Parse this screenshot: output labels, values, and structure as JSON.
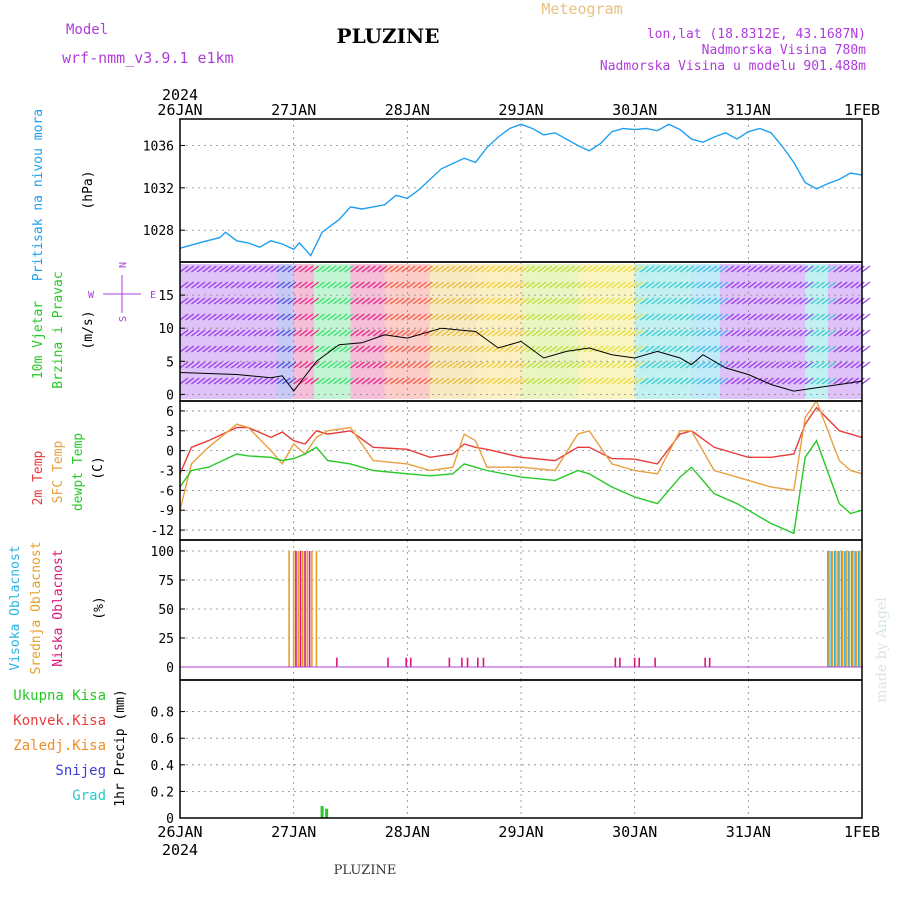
{
  "header": {
    "model_label": "Model",
    "model_name": "wrf-nmm_v3.9.1 e1km",
    "title": "PLUZINE",
    "meteogram_label": "Meteogram",
    "lonlat": "lon,lat (18.8312E, 43.1687N)",
    "altitude": "Nadmorska Visina 780m",
    "model_altitude": "Nadmorska Visina u modelu 901.488m",
    "footer_title": "PLUZINE",
    "credit": "made by Angel"
  },
  "time_axis": {
    "year_top": "2024",
    "year_bottom": "2024",
    "labels": [
      "26JAN",
      "27JAN",
      "28JAN",
      "29JAN",
      "30JAN",
      "31JAN",
      "1FEB"
    ]
  },
  "colors": {
    "pressure": "#1ea0f0",
    "temp2m": "#e83c3c",
    "sfc_temp": "#e8a040",
    "dewpoint": "#28c828",
    "high_cloud": "#28b4e6",
    "mid_cloud": "#e6a028",
    "low_cloud": "#dc1478",
    "precip_total": "#28c828",
    "precip_conv": "#e83c3c",
    "precip_frozen": "#f08c28",
    "precip_snow": "#3c3cdc",
    "precip_grad": "#28c8c8",
    "wind_label": "#28c828",
    "compass": "#b03cdc"
  },
  "panels": {
    "pressure": {
      "label": "Pritisak na nivou mora",
      "unit": "(hPa)"
    },
    "wind": {
      "label1": "10m Vjetar",
      "label2": "Brzina i Pravac",
      "unit": "(m/s)",
      "compass_n": "N",
      "compass_s": "S",
      "compass_w": "W",
      "compass_e": "E"
    },
    "temp": {
      "label_2m": "2m Temp",
      "label_sfc": "SFC Temp",
      "label_dew": "dewpt Temp",
      "unit": "(C)"
    },
    "cloud": {
      "label_high": "Visoka Oblacnost",
      "label_mid": "Srednja Oblacnost",
      "label_low": "Niska Oblacnost",
      "unit": "(%)"
    },
    "precip": {
      "legend": [
        "Ukupna Kisa",
        "Konvek.Kisa",
        "Zaledj.Kisa",
        "Snijeg",
        "Grad"
      ],
      "unit": "1hr Precip (mm)"
    }
  },
  "chart_data": [
    {
      "type": "line",
      "title": "Pritisak na nivou mora",
      "ylabel": "(hPa)",
      "ylim": [
        1025,
        1038.5
      ],
      "yticks": [
        1028,
        1032,
        1036
      ],
      "x_days": [
        0,
        0.1,
        0.2,
        0.35,
        0.4,
        0.5,
        0.6,
        0.7,
        0.8,
        0.9,
        1.0,
        1.05,
        1.15,
        1.25,
        1.4,
        1.5,
        1.6,
        1.8,
        1.9,
        2.0,
        2.1,
        2.3,
        2.5,
        2.6,
        2.7,
        2.8,
        2.9,
        3.0,
        3.1,
        3.2,
        3.3,
        3.4,
        3.5,
        3.6,
        3.7,
        3.8,
        3.9,
        4.0,
        4.1,
        4.2,
        4.3,
        4.4,
        4.5,
        4.6,
        4.7,
        4.8,
        4.9,
        5.0,
        5.1,
        5.2,
        5.3,
        5.4,
        5.5,
        5.6,
        5.7,
        5.8,
        5.9,
        6.0
      ],
      "series": [
        {
          "values": [
            1026.3,
            1026.6,
            1026.9,
            1027.3,
            1027.8,
            1027.0,
            1026.8,
            1026.4,
            1027.0,
            1026.7,
            1026.2,
            1026.8,
            1025.6,
            1027.8,
            1029.0,
            1030.2,
            1030.0,
            1030.4,
            1031.3,
            1031.0,
            1031.8,
            1033.8,
            1034.8,
            1034.4,
            1035.8,
            1036.8,
            1037.6,
            1038.0,
            1037.6,
            1037.0,
            1037.2,
            1036.6,
            1036.0,
            1035.5,
            1036.2,
            1037.3,
            1037.6,
            1037.5,
            1037.6,
            1037.4,
            1038.0,
            1037.5,
            1036.6,
            1036.3,
            1036.8,
            1037.2,
            1036.6,
            1037.3,
            1037.6,
            1037.2,
            1035.9,
            1034.4,
            1032.5,
            1031.9,
            1032.4,
            1032.8,
            1033.4,
            1033.2
          ]
        }
      ]
    },
    {
      "type": "line",
      "title": "10m Vjetar Brzina i Pravac",
      "ylabel": "(m/s)",
      "ylim": [
        -1,
        20
      ],
      "yticks": [
        0,
        5,
        10,
        15
      ],
      "x_days": [
        0,
        0.5,
        0.8,
        0.9,
        1.0,
        1.2,
        1.4,
        1.6,
        1.8,
        2.0,
        2.3,
        2.6,
        2.8,
        3.0,
        3.2,
        3.4,
        3.6,
        3.8,
        4.0,
        4.2,
        4.4,
        4.5,
        4.6,
        4.8,
        5.0,
        5.2,
        5.4,
        5.6,
        5.8,
        6.0
      ],
      "series": [
        {
          "values": [
            3.3,
            3.0,
            2.5,
            2.8,
            0.5,
            5.0,
            7.5,
            7.8,
            9.0,
            8.5,
            10.0,
            9.5,
            7.0,
            8.0,
            5.5,
            6.5,
            7.0,
            6.0,
            5.5,
            6.5,
            5.5,
            4.5,
            6.0,
            4.0,
            3.0,
            1.5,
            0.5,
            1.0,
            1.5,
            2.0
          ]
        }
      ]
    },
    {
      "type": "line",
      "title": "2m Temp / SFC Temp / dewpt Temp",
      "ylabel": "(C)",
      "ylim": [
        -13.5,
        7.5
      ],
      "yticks": [
        -12,
        -9,
        -6,
        -3,
        0,
        3,
        6
      ],
      "x_days": [
        0,
        0.1,
        0.25,
        0.5,
        0.6,
        0.8,
        0.9,
        1.0,
        1.1,
        1.2,
        1.3,
        1.5,
        1.7,
        2.0,
        2.2,
        2.4,
        2.5,
        2.6,
        2.7,
        3.0,
        3.3,
        3.5,
        3.6,
        3.8,
        4.0,
        4.2,
        4.4,
        4.5,
        4.7,
        4.9,
        5.0,
        5.2,
        5.4,
        5.5,
        5.6,
        5.8,
        5.9,
        6.0
      ],
      "series": [
        {
          "name": "2m Temp",
          "values": [
            -3.5,
            0.5,
            1.5,
            3.5,
            3.5,
            2.0,
            2.8,
            1.5,
            1.0,
            3.0,
            2.5,
            3.0,
            0.5,
            0.2,
            -1.0,
            -0.5,
            1.0,
            0.5,
            0.2,
            -1.0,
            -1.5,
            0.5,
            0.5,
            -1.2,
            -1.3,
            -2.0,
            2.5,
            3.0,
            0.5,
            -0.5,
            -1.0,
            -1.0,
            -0.5,
            4.0,
            6.5,
            3.0,
            2.5,
            2.0
          ]
        },
        {
          "name": "SFC Temp",
          "values": [
            -9.0,
            -2.0,
            0.5,
            4.0,
            3.5,
            0.0,
            -2.0,
            1.0,
            -0.5,
            2.0,
            3.0,
            3.5,
            -1.5,
            -2.0,
            -3.0,
            -2.5,
            2.5,
            1.5,
            -2.5,
            -2.5,
            -3.0,
            2.5,
            3.0,
            -2.0,
            -3.0,
            -3.5,
            3.0,
            3.0,
            -3.0,
            -4.0,
            -4.5,
            -5.5,
            -6.0,
            5.0,
            7.5,
            -1.5,
            -3.0,
            -3.5
          ]
        },
        {
          "name": "dewpt Temp",
          "values": [
            -5.5,
            -3.0,
            -2.5,
            -0.5,
            -0.8,
            -1.0,
            -1.5,
            -1.2,
            -0.5,
            0.5,
            -1.5,
            -2.0,
            -3.0,
            -3.5,
            -3.8,
            -3.5,
            -2.0,
            -2.5,
            -3.0,
            -4.0,
            -4.5,
            -3.0,
            -3.5,
            -5.5,
            -7.0,
            -8.0,
            -4.0,
            -2.5,
            -6.5,
            -8.0,
            -9.0,
            -11.0,
            -12.5,
            -1.0,
            1.5,
            -8.0,
            -9.5,
            -9.0
          ]
        }
      ]
    },
    {
      "type": "bar",
      "title": "Visoka / Srednja / Niska Oblacnost",
      "ylabel": "(%)",
      "ylim": [
        0,
        100
      ],
      "yticks": [
        0,
        25,
        50,
        75,
        100
      ],
      "series": [
        {
          "name": "Visoka Oblacnost",
          "x_days": [
            5.7,
            5.73,
            5.76,
            5.79,
            5.82,
            5.85,
            5.88,
            5.91,
            5.94,
            5.97
          ],
          "values": [
            100,
            100,
            100,
            100,
            100,
            100,
            100,
            100,
            100,
            100
          ]
        },
        {
          "name": "Srednja Oblacnost",
          "x_days": [
            0.96,
            1.0,
            1.04,
            1.08,
            1.12,
            1.16,
            1.2,
            5.71,
            5.74,
            5.77,
            5.8,
            5.83,
            5.86,
            5.89,
            5.92,
            5.95,
            5.98
          ],
          "values": [
            100,
            100,
            100,
            100,
            100,
            100,
            100,
            100,
            100,
            100,
            100,
            100,
            100,
            100,
            100,
            100,
            100
          ]
        },
        {
          "name": "Niska Oblacnost",
          "x_days": [
            1.02,
            1.06,
            1.1,
            1.14,
            1.38,
            1.83,
            1.99,
            2.03,
            2.37,
            2.48,
            2.53,
            2.62,
            2.67,
            3.83,
            3.87,
            4.0,
            4.04,
            4.18,
            4.62,
            4.66
          ],
          "values": [
            100,
            100,
            100,
            100,
            8,
            8,
            8,
            8,
            8,
            8,
            8,
            8,
            8,
            8,
            8,
            8,
            8,
            8,
            8,
            8
          ]
        }
      ]
    },
    {
      "type": "bar",
      "title": "1hr Precip",
      "ylabel": "1hr Precip (mm)",
      "ylim": [
        0,
        1.0
      ],
      "yticks": [
        0,
        0.2,
        0.4,
        0.6,
        0.8
      ],
      "series": [
        {
          "name": "Ukupna Kisa",
          "x_days": [
            1.25,
            1.29
          ],
          "values": [
            0.09,
            0.07
          ]
        }
      ]
    }
  ]
}
